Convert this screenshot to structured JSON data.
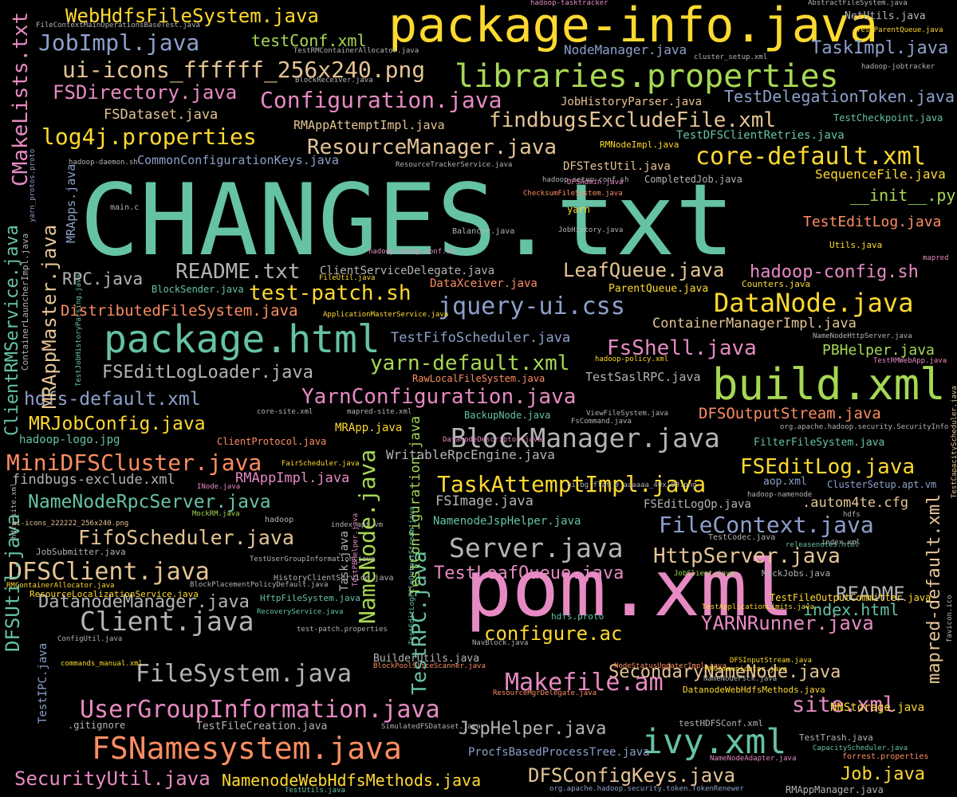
{
  "palette": {
    "green": "#66c2a5",
    "orange": "#fc8d62",
    "blue": "#8da0cb",
    "pink": "#e78ac3",
    "lime": "#a6d854",
    "yellow": "#ffd92f",
    "tan": "#e5c494",
    "gray": "#b3b3b3"
  },
  "words": [
    {
      "text": "CHANGES.txt",
      "color": "green"
    },
    {
      "text": "package-info.java",
      "color": "yellow"
    },
    {
      "text": "pom.xml",
      "color": "pink"
    },
    {
      "text": "build.xml",
      "color": "lime"
    },
    {
      "text": "package.html",
      "color": "green"
    },
    {
      "text": "libraries.properties",
      "color": "lime"
    },
    {
      "text": "WebHdfsFileSystem.java",
      "color": "yellow"
    },
    {
      "text": "JobImpl.java",
      "color": "blue"
    },
    {
      "text": "ui-icons_ffffff_256x240.png",
      "color": "tan"
    },
    {
      "text": "Configuration.java",
      "color": "pink"
    },
    {
      "text": "FSDirectory.java",
      "color": "pink"
    },
    {
      "text": "findbugsExcludeFile.xml",
      "color": "tan"
    },
    {
      "text": "log4j.properties",
      "color": "yellow"
    },
    {
      "text": "ResourceManager.java",
      "color": "tan"
    },
    {
      "text": "core-default.xml",
      "color": "yellow"
    },
    {
      "text": "TaskImpl.java",
      "color": "blue"
    },
    {
      "text": "NodeManager.java",
      "color": "blue"
    },
    {
      "text": "testConf.xml",
      "color": "lime"
    },
    {
      "text": "FSDataset.java",
      "color": "tan"
    },
    {
      "text": "RMAppAttemptImpl.java",
      "color": "tan"
    },
    {
      "text": "TestDelegationToken.java",
      "color": "blue"
    },
    {
      "text": "JobHistoryParser.java",
      "color": "tan"
    },
    {
      "text": "CommonConfigurationKeys.java",
      "color": "blue"
    },
    {
      "text": "DFSTestUtil.java",
      "color": "tan"
    },
    {
      "text": "SequenceFile.java",
      "color": "yellow"
    },
    {
      "text": "__init__.py",
      "color": "lime"
    },
    {
      "text": "TestEditLog.java",
      "color": "orange"
    },
    {
      "text": "README.txt",
      "color": "gray"
    },
    {
      "text": "LeafQueue.java",
      "color": "tan"
    },
    {
      "text": "hadoop-config.sh",
      "color": "pink"
    },
    {
      "text": "RPC.java",
      "color": "gray"
    },
    {
      "text": "test-patch.sh",
      "color": "yellow"
    },
    {
      "text": "jquery-ui.css",
      "color": "blue"
    },
    {
      "text": "DataNode.java",
      "color": "yellow"
    },
    {
      "text": "DistributedFileSystem.java",
      "color": "orange"
    },
    {
      "text": "ContainerManagerImpl.java",
      "color": "tan"
    },
    {
      "text": "TestFifoScheduler.java",
      "color": "blue"
    },
    {
      "text": "FsShell.java",
      "color": "pink"
    },
    {
      "text": "PBHelper.java",
      "color": "lime"
    },
    {
      "text": "FSEditLogLoader.java",
      "color": "gray"
    },
    {
      "text": "yarn-default.xml",
      "color": "lime"
    },
    {
      "text": "hdfs-default.xml",
      "color": "blue"
    },
    {
      "text": "YarnConfiguration.java",
      "color": "pink"
    },
    {
      "text": "MRJobConfig.java",
      "color": "yellow"
    },
    {
      "text": "DFSOutputStream.java",
      "color": "orange"
    },
    {
      "text": "BlockManager.java",
      "color": "gray"
    },
    {
      "text": "MiniDFSCluster.java",
      "color": "orange"
    },
    {
      "text": "FSEditLog.java",
      "color": "yellow"
    },
    {
      "text": "findbugs-exclude.xml",
      "color": "gray"
    },
    {
      "text": "RMAppImpl.java",
      "color": "pink"
    },
    {
      "text": "TaskAttemptImpl.java",
      "color": "yellow"
    },
    {
      "text": "NameNodeRpcServer.java",
      "color": "green"
    },
    {
      "text": "FSImage.java",
      "color": "gray"
    },
    {
      "text": "FifoScheduler.java",
      "color": "tan"
    },
    {
      "text": "FileContext.java",
      "color": "blue"
    },
    {
      "text": "Server.java",
      "color": "gray"
    },
    {
      "text": "HttpServer.java",
      "color": "tan"
    },
    {
      "text": "DFSClient.java",
      "color": "tan"
    },
    {
      "text": "TestLeafQueue.java",
      "color": "pink"
    },
    {
      "text": "DatanodeManager.java",
      "color": "gray"
    },
    {
      "text": "README",
      "color": "gray"
    },
    {
      "text": "index.html",
      "color": "green"
    },
    {
      "text": "Client.java",
      "color": "gray"
    },
    {
      "text": "configure.ac",
      "color": "yellow"
    },
    {
      "text": "YARNRunner.java",
      "color": "pink"
    },
    {
      "text": "FileSystem.java",
      "color": "gray"
    },
    {
      "text": "SecondaryNameNode.java",
      "color": "tan"
    },
    {
      "text": "UserGroupInformation.java",
      "color": "pink"
    },
    {
      "text": "Makefile.am",
      "color": "pink"
    },
    {
      "text": "site.xml",
      "color": "pink"
    },
    {
      "text": "JspHelper.java",
      "color": "gray"
    },
    {
      "text": "FSNamesystem.java",
      "color": "orange"
    },
    {
      "text": "ivy.xml",
      "color": "green"
    },
    {
      "text": "SecurityUtil.java",
      "color": "pink"
    },
    {
      "text": "NamenodeWebHdfsMethods.java",
      "color": "yellow"
    },
    {
      "text": "DFSConfigKeys.java",
      "color": "tan"
    },
    {
      "text": "Job.java",
      "color": "yellow"
    },
    {
      "text": "CMakeLists.txt",
      "color": "pink",
      "vertical": true
    },
    {
      "text": "MRAppMaster.java",
      "color": "tan",
      "vertical": true
    },
    {
      "text": "ClientRMService.java",
      "color": "green",
      "vertical": true
    },
    {
      "text": "DFSUtil.java",
      "color": "green",
      "vertical": true
    },
    {
      "text": "NameNode.java",
      "color": "lime",
      "vertical": true
    },
    {
      "text": "TestRPC.java",
      "color": "green",
      "vertical": true
    },
    {
      "text": "TestConfiguration.java",
      "color": "lime",
      "vertical": true
    },
    {
      "text": "mapred-default.xml",
      "color": "tan",
      "vertical": true
    },
    {
      "text": "MRApps.java",
      "color": "blue",
      "vertical": true
    },
    {
      "text": "TestIPC.java",
      "color": "blue",
      "vertical": true
    },
    {
      "text": "Task.java",
      "color": "gray",
      "vertical": true
    },
    {
      "text": ".autom4te.cfg",
      "color": "tan"
    },
    {
      "text": "aop.xml",
      "color": "blue"
    },
    {
      "text": "ClusterSetup.apt.vm",
      "color": "blue"
    },
    {
      "text": "FSEditLogOp.java",
      "color": "gray"
    },
    {
      "text": "NamenodeJspHelper.java",
      "color": "green"
    },
    {
      "text": "WritableRpcEngine.java",
      "color": "gray"
    },
    {
      "text": "FilterFileSystem.java",
      "color": "green"
    },
    {
      "text": "hadoop-logo.jpg",
      "color": "green"
    },
    {
      "text": "MRApp.java",
      "color": "yellow"
    },
    {
      "text": "ClientProtocol.java",
      "color": "orange"
    },
    {
      "text": "BackupNode.java",
      "color": "green"
    },
    {
      "text": "TestSaslRPC.java",
      "color": "gray"
    },
    {
      "text": "RawLocalFileSystem.java",
      "color": "orange"
    },
    {
      "text": "ParentQueue.java",
      "color": "yellow"
    },
    {
      "text": "DataXceiver.java",
      "color": "orange"
    },
    {
      "text": "BlockSender.java",
      "color": "green"
    },
    {
      "text": "ClientServiceDelegate.java",
      "color": "gray"
    },
    {
      "text": "CompletedJob.java",
      "color": "gray"
    },
    {
      "text": "Balancer.java",
      "color": "gray"
    },
    {
      "text": "Utils.java",
      "color": "yellow"
    },
    {
      "text": "TestCheckpoint.java",
      "color": "green"
    },
    {
      "text": "TestDFSClientRetries.java",
      "color": "green"
    },
    {
      "text": "RMNodeImpl.java",
      "color": "yellow"
    },
    {
      "text": "ResourceTrackerService.java",
      "color": "gray"
    },
    {
      "text": "NetUtils.java",
      "color": "gray"
    },
    {
      "text": "TestParentQueue.java",
      "color": "yellow"
    },
    {
      "text": "cluster_setup.xml",
      "color": "gray"
    },
    {
      "text": "hadoop-jobtracker",
      "color": "gray"
    },
    {
      "text": "AbstractFileSystem.java",
      "color": "gray"
    },
    {
      "text": "hadoop-tasktracker",
      "color": "pink"
    },
    {
      "text": "FileContextMainOperationsBaseTest.java",
      "color": "gray"
    },
    {
      "text": "TestRMContainerAllocator.java",
      "color": "gray"
    },
    {
      "text": "BlockReceiver.java",
      "color": "gray"
    },
    {
      "text": "hadoop-daemon.sh",
      "color": "gray"
    },
    {
      "text": "main.c",
      "color": "gray"
    },
    {
      "text": "hadoop-setup-conf.sh",
      "color": "gray"
    },
    {
      "text": "ChecksumFileSystem.java",
      "color": "orange"
    },
    {
      "text": "yarn",
      "color": "yellow"
    },
    {
      "text": "JobHistory.java",
      "color": "gray"
    },
    {
      "text": "FileUtil.java",
      "color": "yellow"
    },
    {
      "text": "Counters.java",
      "color": "yellow"
    },
    {
      "text": "mapred",
      "color": "pink"
    },
    {
      "text": "ApplicationMasterService.java",
      "color": "yellow"
    },
    {
      "text": "NameNodeHttpServer.java",
      "color": "gray"
    },
    {
      "text": "hadoop-policy.xml",
      "color": "yellow"
    },
    {
      "text": "TestRMWebApp.java",
      "color": "pink"
    },
    {
      "text": "mapred-site.xml",
      "color": "gray"
    },
    {
      "text": "ViewFileSystem.java",
      "color": "gray"
    },
    {
      "text": "FsCommand.java",
      "color": "gray"
    },
    {
      "text": "core-site.xml",
      "color": "gray"
    },
    {
      "text": "DatanodeDescriptor.java",
      "color": "pink"
    },
    {
      "text": "org.apache.hadoop.security.SecurityInfo",
      "color": "gray"
    },
    {
      "text": "FairScheduler.java",
      "color": "yellow"
    },
    {
      "text": "ui-bg_flat_0_aaaaaa_40x100.png",
      "color": "gray"
    },
    {
      "text": "INode.java",
      "color": "pink"
    },
    {
      "text": "hadoop-namenode",
      "color": "gray"
    },
    {
      "text": "MockRM.java",
      "color": "lime"
    },
    {
      "text": "ui-icons_222222_256x240.png",
      "color": "tan"
    },
    {
      "text": "hadoop",
      "color": "gray"
    },
    {
      "text": "index.apt.vm",
      "color": "gray"
    },
    {
      "text": "hdfs",
      "color": "gray"
    },
    {
      "text": "JobSubmitter.java",
      "color": "gray"
    },
    {
      "text": "TestUserGroupInformation.java",
      "color": "gray"
    },
    {
      "text": "TestCodec.java",
      "color": "gray"
    },
    {
      "text": "releasenotes.html",
      "color": "green"
    },
    {
      "text": "index.xml",
      "color": "gray"
    },
    {
      "text": "HistoryClientService.java",
      "color": "gray"
    },
    {
      "text": "JobClient.java",
      "color": "lime"
    },
    {
      "text": "MockJobs.java",
      "color": "gray"
    },
    {
      "text": "RMContainerAllocator.java",
      "color": "yellow"
    },
    {
      "text": "BlockPlacementPolicyDefault.java",
      "color": "gray"
    },
    {
      "text": "ResourceLocalizationService.java",
      "color": "yellow"
    },
    {
      "text": "HftpFileSystem.java",
      "color": "green"
    },
    {
      "text": "TestFileOutputCommitter.java",
      "color": "yellow"
    },
    {
      "text": "RecoveryService.java",
      "color": "green"
    },
    {
      "text": "TestApplicationLimits.java",
      "color": "yellow"
    },
    {
      "text": "hdfs.proto",
      "color": "green"
    },
    {
      "text": "test-patch.properties",
      "color": "gray"
    },
    {
      "text": "ConfigUtil.java",
      "color": "gray"
    },
    {
      "text": "NavBlock.java",
      "color": "gray"
    },
    {
      "text": "commands_manual.xml",
      "color": "yellow"
    },
    {
      "text": "BuilderUtils.java",
      "color": "gray"
    },
    {
      "text": "BlockPoolSliceScanner.java",
      "color": "orange"
    },
    {
      "text": "NodeStatusUpdaterImpl.java",
      "color": "orange"
    },
    {
      "text": "DFSInputStream.java",
      "color": "yellow"
    },
    {
      "text": "RMCommunicator.java",
      "color": "yellow"
    },
    {
      "text": "NameNodeFsck.java",
      "color": "gray"
    },
    {
      "text": "ResourceMgrDelegate.java",
      "color": "orange"
    },
    {
      "text": "DatanodeWebHdfsMethods.java",
      "color": "yellow"
    },
    {
      "text": "NNStorage.java",
      "color": "yellow"
    },
    {
      "text": ".gitignore",
      "color": "gray"
    },
    {
      "text": "TestFileCreation.java",
      "color": "gray"
    },
    {
      "text": "SimulatedFSDataset.java",
      "color": "gray"
    },
    {
      "text": "testHDFSConf.xml",
      "color": "gray"
    },
    {
      "text": "TestTrash.java",
      "color": "gray"
    },
    {
      "text": "ProcfsBasedProcessTree.java",
      "color": "blue"
    },
    {
      "text": "CapacityScheduler.java",
      "color": "green"
    },
    {
      "text": "NameNodeAdapter.java",
      "color": "pink"
    },
    {
      "text": "forrest.properties",
      "color": "orange"
    },
    {
      "text": "TestUtils.java",
      "color": "green"
    },
    {
      "text": "org.apache.hadoop.security.token.TokenRenewer",
      "color": "blue"
    },
    {
      "text": "RMAppManager.java",
      "color": "gray"
    },
    {
      "text": "DFSAdmin.java",
      "color": "pink"
    },
    {
      "text": "hadoop-setup-conf.sh",
      "color": "pink"
    },
    {
      "text": "yarn_protos.proto",
      "color": "blue",
      "vertical": true
    },
    {
      "text": "ContainerLauncherImpl.java",
      "color": "gray",
      "vertical": true
    },
    {
      "text": "TestJobHistoryParsing.java",
      "color": "green",
      "vertical": true
    },
    {
      "text": "hdfs-site.xml",
      "color": "gray",
      "vertical": true
    },
    {
      "text": "favicon.ico",
      "color": "gray",
      "vertical": true
    },
    {
      "text": "TestCapacityScheduler.java",
      "color": "tan",
      "vertical": true
    },
    {
      "text": "TestEditLogFileOutputStream.java",
      "color": "green",
      "vertical": true
    },
    {
      "text": "TestPBHelper.java",
      "color": "pink",
      "vertical": true
    },
    {
      "text": "TestLeafQueue",
      "color": "gray",
      "vertical": true
    }
  ]
}
